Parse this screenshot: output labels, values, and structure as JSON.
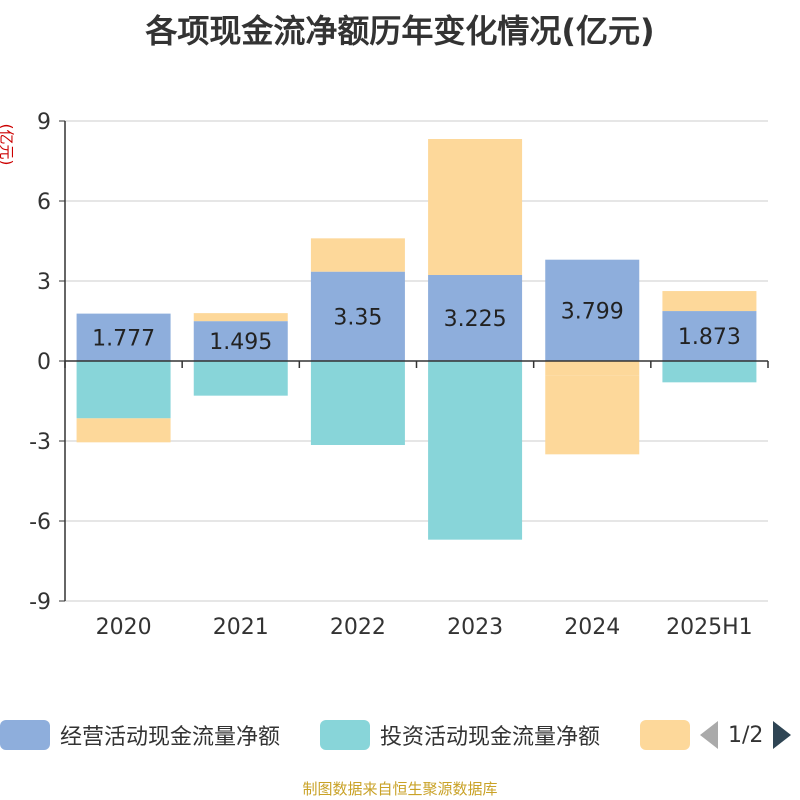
{
  "title": "各项现金流净额历年变化情况(亿元)",
  "unit_label": "(亿元)",
  "source": "制图数据来自恒生聚源数据库",
  "legend": {
    "items": [
      {
        "label": "经营活动现金流量净额",
        "color": "#8eaedc"
      },
      {
        "label": "投资活动现金流量净额",
        "color": "#88d5d9"
      },
      {
        "label": "",
        "color": "#fdd89a"
      }
    ],
    "pager": "1/2"
  },
  "chart_data": {
    "type": "bar",
    "stacked": true,
    "categories": [
      "2020",
      "2021",
      "2022",
      "2023",
      "2024",
      "2025H1"
    ],
    "series": [
      {
        "name": "经营活动现金流量净额",
        "color": "#8eaedc",
        "values": [
          1.777,
          1.495,
          3.35,
          3.225,
          3.799,
          1.873
        ],
        "labels": [
          "1.777",
          "1.495",
          "3.35",
          "3.225",
          "3.799",
          "1.873"
        ]
      },
      {
        "name": "投资活动现金流量净额",
        "color": "#88d5d9",
        "values": [
          -2.15,
          -1.3,
          -3.15,
          -6.7,
          0,
          -0.8
        ]
      },
      {
        "name": "",
        "color": "#fdd89a",
        "values": [
          -0.9,
          0.3,
          1.25,
          5.1,
          -2.95,
          0.75
        ]
      }
    ],
    "extra_negative_2024": -0.55,
    "y_ticks": [
      "9",
      "6",
      "3",
      "0",
      "-3",
      "-6",
      "-9"
    ],
    "ylim": [
      -9,
      9
    ],
    "grid": true,
    "legend_position": "bottom"
  }
}
